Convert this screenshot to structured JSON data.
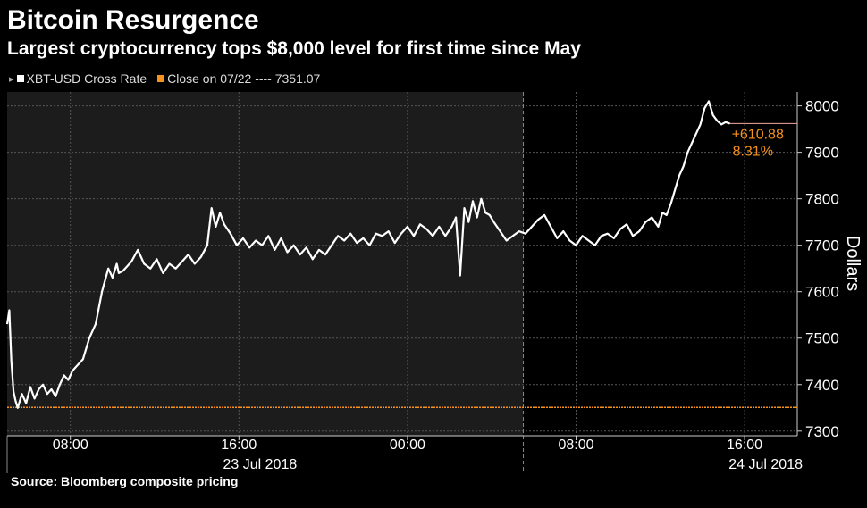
{
  "header": {
    "title": "Bitcoin Resurgence",
    "subtitle": "Largest cryptocurrency tops $8,000 level for first time since May"
  },
  "legend": {
    "series_label": "XBT-USD Cross Rate",
    "close_label": "Close on 07/22 ---- 7351.07"
  },
  "annotation": {
    "change": "+610.88",
    "percent": "8.31%"
  },
  "footer": {
    "source": "Source: Bloomberg composite pricing"
  },
  "colors": {
    "background": "#000000",
    "shade": "#1c1c1c",
    "series": "#ffffff",
    "accent": "#f5911e"
  },
  "chart_data": {
    "type": "line",
    "title": "Bitcoin Resurgence",
    "subtitle": "Largest cryptocurrency tops $8,000 level for first time since May",
    "ylabel": "Dollars",
    "ylim": [
      7290,
      8030
    ],
    "yticks": [
      7300,
      7400,
      7500,
      7600,
      7700,
      7800,
      7900,
      8000
    ],
    "xlim": [
      5.0,
      42.5
    ],
    "x_unit": "hours since 2018-07-23 00:00",
    "xticks": [
      {
        "x": 8,
        "label": "08:00"
      },
      {
        "x": 16,
        "label": "16:00"
      },
      {
        "x": 24,
        "label": "00:00"
      },
      {
        "x": 32,
        "label": "08:00"
      },
      {
        "x": 40,
        "label": "16:00"
      },
      {
        "x": 48,
        "label": "00:00"
      }
    ],
    "date_labels": [
      {
        "x": 17,
        "label": "23 Jul 2018"
      },
      {
        "x": 41,
        "label": "24 Jul 2018"
      }
    ],
    "day_boundary_x": 29.5,
    "reference_line": {
      "name": "Close on 07/22",
      "y": 7351.07
    },
    "last_value": 7961.95,
    "grid": true,
    "legend_position": "top-left",
    "series": [
      {
        "name": "XBT-USD Cross Rate",
        "x": [
          5.0,
          5.1,
          5.2,
          5.3,
          5.4,
          5.5,
          5.7,
          5.9,
          6.1,
          6.3,
          6.5,
          6.7,
          6.9,
          7.1,
          7.3,
          7.5,
          7.7,
          7.9,
          8.1,
          8.3,
          8.6,
          8.9,
          9.2,
          9.5,
          9.8,
          10.0,
          10.2,
          10.3,
          10.5,
          10.7,
          10.9,
          11.2,
          11.5,
          11.8,
          12.1,
          12.4,
          12.7,
          13.0,
          13.3,
          13.6,
          13.9,
          14.2,
          14.5,
          14.7,
          14.9,
          15.1,
          15.3,
          15.6,
          15.9,
          16.2,
          16.5,
          16.8,
          17.1,
          17.4,
          17.7,
          18.0,
          18.3,
          18.6,
          18.9,
          19.2,
          19.5,
          19.8,
          20.1,
          20.4,
          20.7,
          21.0,
          21.3,
          21.6,
          21.9,
          22.2,
          22.5,
          22.8,
          23.1,
          23.4,
          23.7,
          24.0,
          24.3,
          24.6,
          24.9,
          25.2,
          25.5,
          25.8,
          26.1,
          26.3,
          26.5,
          26.7,
          26.9,
          27.1,
          27.3,
          27.5,
          27.7,
          27.9,
          28.1,
          28.4,
          28.7,
          29.0,
          29.3,
          29.6,
          29.9,
          30.2,
          30.5,
          30.8,
          31.1,
          31.4,
          31.7,
          32.0,
          32.3,
          32.6,
          32.9,
          33.2,
          33.5,
          33.8,
          34.1,
          34.4,
          34.7,
          35.0,
          35.3,
          35.6,
          35.9,
          36.1,
          36.3,
          36.5,
          36.7,
          36.9,
          37.1,
          37.3,
          37.5,
          37.7,
          37.9,
          38.1,
          38.3,
          38.5,
          38.7,
          38.9,
          39.1,
          39.3
        ],
        "y": [
          7530,
          7560,
          7450,
          7385,
          7365,
          7350,
          7380,
          7360,
          7395,
          7370,
          7390,
          7400,
          7380,
          7390,
          7375,
          7400,
          7420,
          7410,
          7430,
          7440,
          7455,
          7500,
          7530,
          7600,
          7650,
          7630,
          7660,
          7640,
          7645,
          7655,
          7665,
          7690,
          7660,
          7650,
          7670,
          7640,
          7660,
          7650,
          7665,
          7680,
          7660,
          7675,
          7700,
          7780,
          7740,
          7770,
          7745,
          7725,
          7700,
          7715,
          7695,
          7710,
          7700,
          7720,
          7690,
          7715,
          7685,
          7700,
          7680,
          7695,
          7670,
          7690,
          7680,
          7700,
          7720,
          7710,
          7725,
          7705,
          7715,
          7700,
          7725,
          7720,
          7730,
          7705,
          7725,
          7740,
          7720,
          7745,
          7735,
          7720,
          7740,
          7720,
          7740,
          7760,
          7635,
          7780,
          7750,
          7795,
          7760,
          7800,
          7770,
          7765,
          7750,
          7730,
          7710,
          7720,
          7730,
          7725,
          7740,
          7755,
          7765,
          7740,
          7715,
          7730,
          7710,
          7700,
          7720,
          7710,
          7700,
          7720,
          7725,
          7715,
          7735,
          7745,
          7720,
          7730,
          7750,
          7760,
          7740,
          7770,
          7765,
          7790,
          7820,
          7850,
          7870,
          7900,
          7920,
          7940,
          7960,
          7995,
          8010,
          7980,
          7968,
          7960,
          7965,
          7962
        ]
      }
    ]
  }
}
